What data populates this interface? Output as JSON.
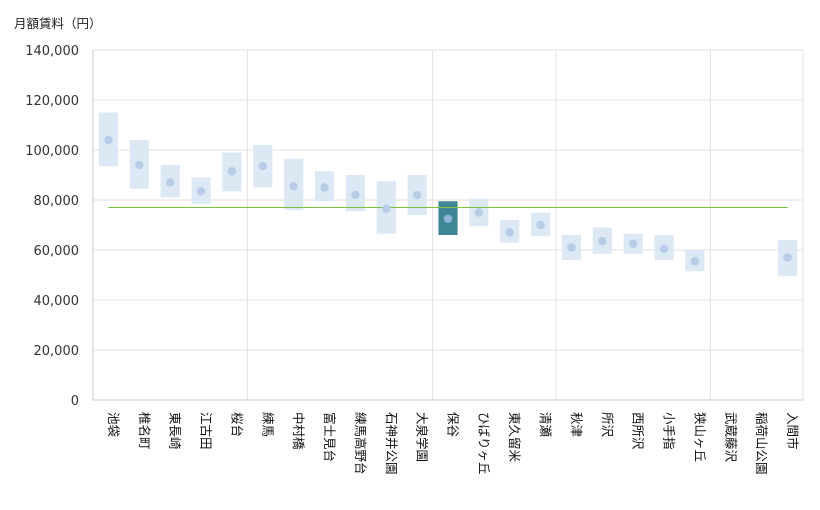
{
  "chart_data": {
    "type": "range-dot",
    "unit_label": "月額賃料（円）",
    "ylim": [
      0,
      140000
    ],
    "yticks": [
      "0",
      "20,000",
      "40,000",
      "60,000",
      "80,000",
      "100,000",
      "120,000",
      "140,000"
    ],
    "reference_value": 77000,
    "highlight_category": "保谷",
    "colors": {
      "range": "#dce9f5",
      "highlight_range": "#3f8797",
      "dot": "#b8cce8",
      "highlight_dot": "#8fb1d7",
      "reference": "#7cc142",
      "grid": "#e2e2e2",
      "axis": "#c8c8c8"
    },
    "categories": [
      "池袋",
      "椎名町",
      "東長崎",
      "江古田",
      "桜台",
      "練馬",
      "中村橋",
      "富士見台",
      "練馬高野台",
      "石神井公園",
      "大泉学園",
      "保谷",
      "ひばりヶ丘",
      "東久留米",
      "清瀬",
      "秋津",
      "所沢",
      "西所沢",
      "小手指",
      "狭山ヶ丘",
      "武蔵藤沢",
      "稲荷山公園",
      "入間市"
    ],
    "series": [
      {
        "name": "low",
        "values": [
          93500,
          84500,
          81000,
          78500,
          83500,
          85000,
          76000,
          79500,
          75500,
          66500,
          74000,
          66000,
          69500,
          63000,
          65500,
          56000,
          58500,
          58500,
          56000,
          51500,
          null,
          null,
          49500
        ]
      },
      {
        "name": "high",
        "values": [
          115000,
          104000,
          94000,
          89000,
          99000,
          102000,
          96500,
          91500,
          90000,
          87500,
          90000,
          79500,
          80500,
          72000,
          75000,
          66000,
          69000,
          66500,
          66000,
          60000,
          null,
          null,
          64000
        ]
      },
      {
        "name": "average",
        "values": [
          104000,
          94000,
          87000,
          83500,
          91500,
          93500,
          85500,
          85000,
          82000,
          76500,
          82000,
          72500,
          75000,
          67000,
          70000,
          61000,
          63500,
          62500,
          60500,
          55500,
          null,
          null,
          57000
        ]
      }
    ],
    "vertical_separators_after": [
      "桜台",
      "大泉学園",
      "清瀬",
      "狭山ヶ丘"
    ]
  }
}
